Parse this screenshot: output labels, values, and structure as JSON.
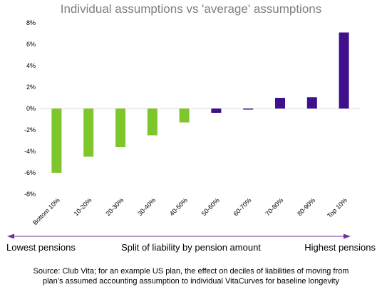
{
  "chart_data": {
    "type": "bar",
    "title": "Individual assumptions vs 'average' assumptions",
    "categories": [
      "Bottom 10%",
      "10-20%",
      "20-30%",
      "30-40%",
      "40-50%",
      "50-60%",
      "60-70%",
      "70-80%",
      "80-90%",
      "Top 10%"
    ],
    "values": [
      -6.0,
      -4.5,
      -3.6,
      -2.5,
      -1.3,
      -0.4,
      -0.1,
      1.0,
      1.05,
      7.1
    ],
    "bar_colors": [
      "#7dc62b",
      "#7dc62b",
      "#7dc62b",
      "#7dc62b",
      "#7dc62b",
      "#3f0f8c",
      "#3f0f8c",
      "#3f0f8c",
      "#3f0f8c",
      "#3f0f8c"
    ],
    "yticks": [
      "-8%",
      "-6%",
      "-4%",
      "-2%",
      "0%",
      "2%",
      "4%",
      "6%",
      "8%"
    ],
    "ylim": [
      -8,
      8
    ],
    "grid": false,
    "xlabel": "Split of liability by pension amount",
    "left_label": "Lowest pensions",
    "right_label": "Highest pensions",
    "footnote_line1": "Source: Club Vita; for an example US plan, the effect on deciles of liabilities of moving from",
    "footnote_line2": "plan’s assumed accounting assumption to individual VitaCurves for baseline longevity"
  },
  "colors": {
    "green": "#7dc62b",
    "purple": "#3f0f8c",
    "arrow": "#7030a0"
  }
}
